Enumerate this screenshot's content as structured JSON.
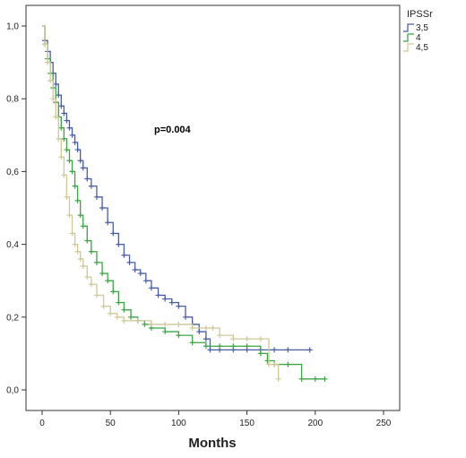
{
  "chart_data": {
    "type": "line",
    "subtype": "kaplan-meier-survival",
    "title": "",
    "xlabel": "Months",
    "ylabel": "",
    "xlim": [
      0,
      250
    ],
    "ylim": [
      0,
      1
    ],
    "xticks": [
      0,
      50,
      100,
      150,
      200,
      250
    ],
    "yticks": [
      0,
      0.2,
      0.4,
      0.6,
      0.8,
      1.0
    ],
    "x_tick_labels": [
      "0",
      "50",
      "100",
      "150",
      "200",
      "250"
    ],
    "y_tick_labels": [
      "0,0",
      "0,2",
      "0,4",
      "0,6",
      "0,8",
      "1,0"
    ],
    "grid": false,
    "legend": {
      "title": "IPSSr",
      "placement": "right-outside"
    },
    "annotation": "p=0.004",
    "series": [
      {
        "name": "3,5",
        "color": "#4a5ea8",
        "censor_marks": true,
        "x": [
          0,
          2,
          4,
          6,
          8,
          10,
          12,
          14,
          16,
          18,
          20,
          22,
          24,
          26,
          28,
          30,
          33,
          36,
          40,
          44,
          48,
          52,
          56,
          60,
          64,
          68,
          72,
          76,
          80,
          85,
          90,
          95,
          100,
          105,
          110,
          115,
          120,
          123,
          130,
          140,
          150,
          160,
          170,
          180,
          196
        ],
        "y": [
          1.0,
          0.96,
          0.93,
          0.9,
          0.87,
          0.84,
          0.81,
          0.78,
          0.76,
          0.74,
          0.72,
          0.7,
          0.68,
          0.66,
          0.63,
          0.61,
          0.58,
          0.56,
          0.53,
          0.5,
          0.46,
          0.43,
          0.4,
          0.37,
          0.35,
          0.33,
          0.32,
          0.3,
          0.28,
          0.26,
          0.25,
          0.24,
          0.23,
          0.2,
          0.18,
          0.16,
          0.14,
          0.11,
          0.11,
          0.11,
          0.11,
          0.11,
          0.11,
          0.11,
          0.11
        ]
      },
      {
        "name": "4",
        "color": "#3ca544",
        "censor_marks": true,
        "x": [
          0,
          2,
          4,
          6,
          8,
          10,
          12,
          14,
          16,
          18,
          20,
          22,
          24,
          26,
          28,
          30,
          33,
          36,
          40,
          44,
          48,
          52,
          56,
          60,
          65,
          70,
          75,
          80,
          90,
          100,
          110,
          120,
          130,
          140,
          150,
          160,
          165,
          170,
          180,
          190,
          200,
          207
        ],
        "y": [
          1.0,
          0.95,
          0.91,
          0.87,
          0.83,
          0.79,
          0.75,
          0.72,
          0.69,
          0.66,
          0.63,
          0.6,
          0.56,
          0.52,
          0.48,
          0.45,
          0.41,
          0.38,
          0.35,
          0.32,
          0.3,
          0.27,
          0.24,
          0.22,
          0.2,
          0.19,
          0.18,
          0.17,
          0.16,
          0.15,
          0.13,
          0.12,
          0.12,
          0.12,
          0.12,
          0.1,
          0.08,
          0.07,
          0.07,
          0.03,
          0.03,
          0.03
        ]
      },
      {
        "name": "4,5",
        "color": "#d1c897",
        "censor_marks": true,
        "x": [
          0,
          2,
          4,
          6,
          8,
          10,
          12,
          14,
          16,
          18,
          20,
          22,
          24,
          26,
          28,
          30,
          33,
          36,
          40,
          45,
          50,
          55,
          60,
          70,
          80,
          90,
          100,
          110,
          120,
          125,
          130,
          140,
          150,
          160,
          166,
          170,
          173
        ],
        "y": [
          1.0,
          0.95,
          0.9,
          0.85,
          0.8,
          0.75,
          0.69,
          0.64,
          0.59,
          0.53,
          0.48,
          0.43,
          0.4,
          0.38,
          0.36,
          0.34,
          0.31,
          0.29,
          0.26,
          0.23,
          0.21,
          0.2,
          0.19,
          0.19,
          0.18,
          0.18,
          0.18,
          0.17,
          0.17,
          0.17,
          0.15,
          0.14,
          0.14,
          0.14,
          0.07,
          0.07,
          0.03
        ]
      }
    ]
  }
}
